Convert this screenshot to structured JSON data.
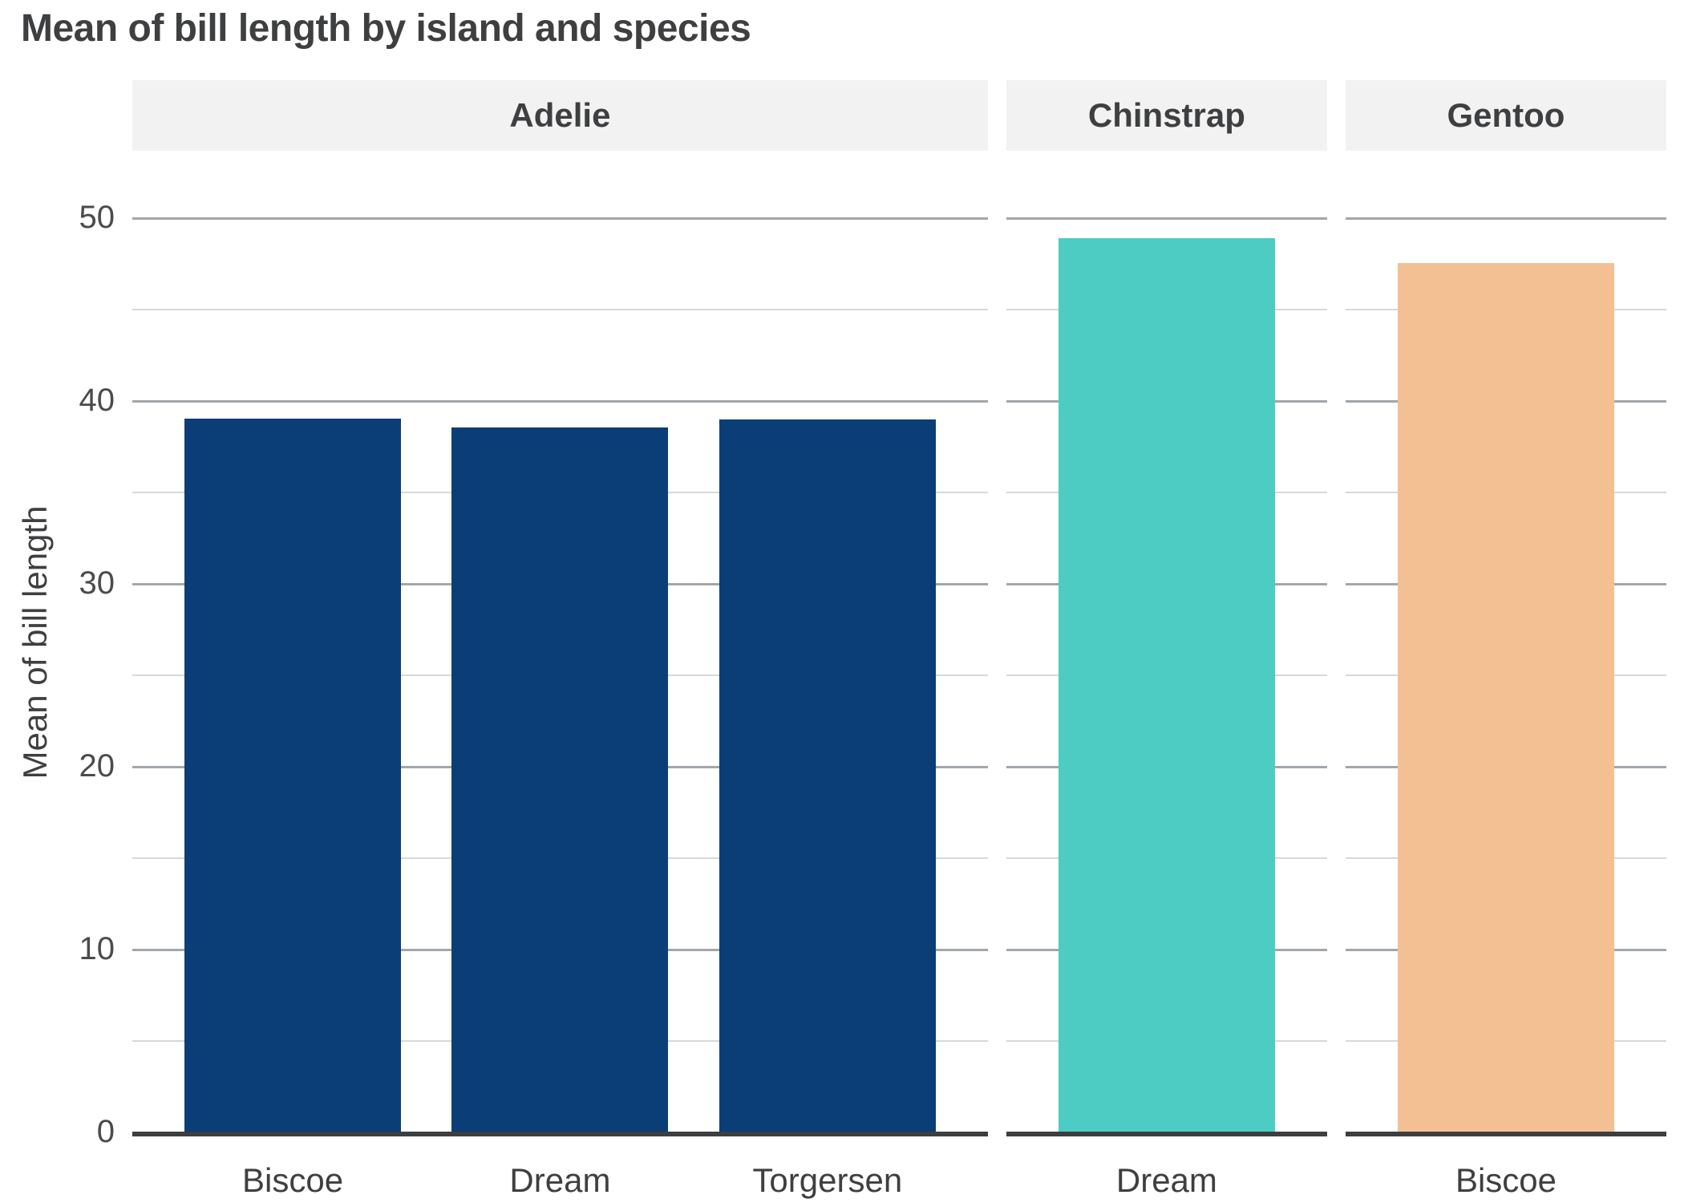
{
  "chart_data": {
    "type": "bar",
    "title": "Mean of bill length by island and species",
    "xlabel": "",
    "ylabel": "Mean of bill length",
    "ylim": [
      0,
      53.4
    ],
    "yticks": [
      0,
      10,
      20,
      30,
      40,
      50
    ],
    "yticks_minor": [
      5,
      15,
      25,
      35,
      45
    ],
    "grid": "horizontal-major-and-minor",
    "legend": "none",
    "facets": [
      {
        "label": "Adelie",
        "bar_color": "#0b3e76",
        "categories": [
          "Biscoe",
          "Dream",
          "Torgersen"
        ],
        "values": [
          38.98,
          38.5,
          38.95
        ]
      },
      {
        "label": "Chinstrap",
        "bar_color": "#4dccc3",
        "categories": [
          "Dream"
        ],
        "values": [
          48.83
        ]
      },
      {
        "label": "Gentoo",
        "bar_color": "#f3c094",
        "categories": [
          "Biscoe"
        ],
        "values": [
          47.5
        ]
      }
    ],
    "colors": {
      "strip_background": "#f2f2f2",
      "strip_text": "#3e3f41",
      "title_text": "#3e3f41",
      "tick_text": "#4a4b4d",
      "axis_line": "#3d3e40",
      "grid_major": "#a2a7ab",
      "grid_minor": "#d6d8da",
      "background": "#ffffff"
    }
  }
}
